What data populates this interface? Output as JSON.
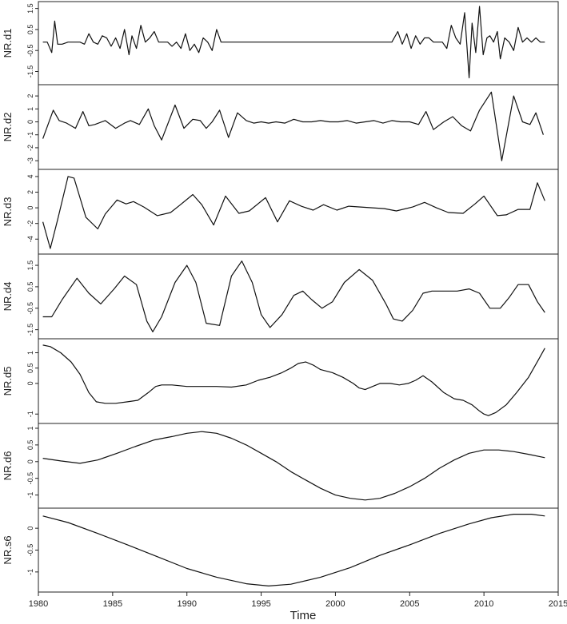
{
  "chart_data": {
    "type": "line",
    "xlabel": "Time",
    "xlim": [
      1980,
      2015
    ],
    "x_ticks": [
      1980,
      1985,
      1990,
      1995,
      2000,
      2005,
      2010,
      2015
    ],
    "grid": false,
    "line_color": "#111111",
    "panels": [
      {
        "ylabel": "NR.d1",
        "ylim": [
          -1.9,
          1.6
        ],
        "y_ticks": [
          -1.5,
          -0.5,
          0.5,
          1.5
        ],
        "x": [
          1980.3,
          1980.6,
          1980.9,
          1981.1,
          1981.3,
          1981.6,
          1982,
          1982.5,
          1982.8,
          1983.1,
          1983.4,
          1983.7,
          1984,
          1984.3,
          1984.6,
          1984.9,
          1985.2,
          1985.5,
          1985.8,
          1986.1,
          1986.3,
          1986.6,
          1986.9,
          1987.2,
          1987.5,
          1987.8,
          1988.1,
          1988.4,
          1988.7,
          1989,
          1989.3,
          1989.6,
          1989.9,
          1990.2,
          1990.5,
          1990.8,
          1991.1,
          1991.4,
          1991.7,
          1992,
          1992.3,
          1992.6,
          1992.9,
          1993.2,
          1993.5,
          1994,
          1995,
          1995.5,
          1996,
          1996.5,
          1997,
          1997.5,
          1998,
          1999,
          2000,
          2001,
          2002,
          2003,
          2003.8,
          2004.2,
          2004.5,
          2004.8,
          2005.1,
          2005.4,
          2005.7,
          2006,
          2006.3,
          2006.6,
          2006.9,
          2007.2,
          2007.5,
          2007.8,
          2008.1,
          2008.4,
          2008.7,
          2009,
          2009.2,
          2009.45,
          2009.7,
          2009.95,
          2010.2,
          2010.4,
          2010.65,
          2010.9,
          2011.1,
          2011.4,
          2011.7,
          2012,
          2012.3,
          2012.6,
          2012.9,
          2013.2,
          2013.5,
          2013.8,
          2014.1
        ],
        "values": [
          -0.1,
          -0.1,
          -0.6,
          0.9,
          -0.2,
          -0.2,
          -0.1,
          -0.1,
          -0.1,
          -0.2,
          0.3,
          -0.1,
          -0.2,
          0.2,
          0.1,
          -0.3,
          0.1,
          -0.4,
          0.5,
          -0.7,
          0.2,
          -0.4,
          0.7,
          -0.1,
          0.1,
          0.4,
          -0.1,
          -0.1,
          -0.1,
          -0.3,
          -0.1,
          -0.4,
          0.3,
          -0.5,
          -0.2,
          -0.6,
          0.1,
          -0.1,
          -0.5,
          0.5,
          -0.1,
          -0.1,
          -0.1,
          -0.1,
          -0.1,
          -0.1,
          -0.1,
          -0.1,
          -0.1,
          -0.1,
          -0.1,
          -0.1,
          -0.1,
          -0.1,
          -0.1,
          -0.1,
          -0.1,
          -0.1,
          -0.1,
          0.4,
          -0.2,
          0.3,
          -0.4,
          0.2,
          -0.2,
          0.1,
          0.1,
          -0.1,
          -0.1,
          -0.1,
          -0.4,
          0.7,
          0.1,
          -0.2,
          1.3,
          -1.8,
          0.8,
          -0.6,
          1.6,
          -0.7,
          0.1,
          0.2,
          -0.1,
          0.4,
          -0.9,
          0.1,
          -0.1,
          -0.5,
          0.6,
          -0.1,
          0.1,
          -0.1,
          0.1,
          -0.1,
          -0.1
        ]
      },
      {
        "ylabel": "NR.d2",
        "ylim": [
          -3.3,
          2.5
        ],
        "y_ticks": [
          -3,
          -2,
          -1,
          0,
          1,
          2
        ],
        "x": [
          1980.3,
          1981,
          1981.4,
          1981.9,
          1982.5,
          1983,
          1983.4,
          1983.8,
          1984.5,
          1985.2,
          1985.8,
          1986.2,
          1986.8,
          1987.4,
          1987.8,
          1988.3,
          1989.2,
          1989.8,
          1990.4,
          1990.9,
          1991.3,
          1991.7,
          1992.2,
          1992.8,
          1993.4,
          1994,
          1994.5,
          1995,
          1995.5,
          1996,
          1996.6,
          1997.2,
          1997.8,
          1998.4,
          1999,
          1999.6,
          2000.2,
          2000.8,
          2001.4,
          2002,
          2002.6,
          2003.2,
          2003.8,
          2004.4,
          2005,
          2005.6,
          2006.1,
          2006.6,
          2007.3,
          2007.9,
          2008.5,
          2009.1,
          2009.7,
          2010.5,
          2011.2,
          2012,
          2012.6,
          2013.1,
          2013.5,
          2014
        ],
        "values": [
          -1.3,
          0.9,
          0.1,
          -0.1,
          -0.5,
          0.8,
          -0.3,
          -0.2,
          0.1,
          -0.5,
          -0.1,
          0.1,
          -0.2,
          1.0,
          -0.3,
          -1.4,
          1.3,
          -0.5,
          0.2,
          0.1,
          -0.5,
          0.0,
          0.9,
          -1.2,
          0.7,
          0.1,
          -0.1,
          0.0,
          -0.1,
          0.0,
          -0.1,
          0.2,
          0.0,
          0.0,
          0.1,
          0.0,
          0.0,
          0.1,
          -0.1,
          0.0,
          0.1,
          -0.1,
          0.1,
          0.0,
          0.0,
          -0.2,
          0.8,
          -0.6,
          0.0,
          0.4,
          -0.3,
          -0.7,
          0.9,
          2.3,
          -3.0,
          2.0,
          0.0,
          -0.2,
          0.7,
          -1.0
        ]
      },
      {
        "ylabel": "NR.d3",
        "ylim": [
          -5.3,
          4.3
        ],
        "y_ticks": [
          -4,
          -2,
          0,
          2,
          4
        ],
        "x": [
          1980.3,
          1980.8,
          1981.3,
          1982.0,
          1982.4,
          1983.2,
          1984.0,
          1984.5,
          1985.3,
          1985.9,
          1986.4,
          1987.1,
          1988.0,
          1988.9,
          1989.5,
          1990.4,
          1991.0,
          1991.8,
          1992.6,
          1993.5,
          1994.2,
          1995.3,
          1996.1,
          1996.9,
          1997.7,
          1998.5,
          1999.2,
          2000.1,
          2000.9,
          2001.7,
          2002.5,
          2003.3,
          2004.1,
          2005.2,
          2006.0,
          2006.8,
          2007.6,
          2008.6,
          2009.4,
          2010.0,
          2010.9,
          2011.5,
          2012.3,
          2013.1,
          2013.6,
          2014.1
        ],
        "values": [
          -1.8,
          -5.2,
          -1.5,
          4.0,
          3.8,
          -1.2,
          -2.7,
          -0.8,
          1.0,
          0.5,
          0.8,
          0.1,
          -1.0,
          -0.6,
          0.3,
          1.7,
          0.4,
          -2.2,
          1.5,
          -0.7,
          -0.4,
          1.3,
          -1.8,
          0.9,
          0.2,
          -0.3,
          0.4,
          -0.3,
          0.2,
          0.1,
          0.0,
          -0.1,
          -0.4,
          0.1,
          0.7,
          0.0,
          -0.6,
          -0.7,
          0.5,
          1.5,
          -1.0,
          -0.9,
          -0.2,
          -0.2,
          3.2,
          0.9
        ]
      },
      {
        "ylabel": "NR.d4",
        "ylim": [
          -1.7,
          1.8
        ],
        "y_ticks": [
          -1.5,
          -0.5,
          0.5,
          1.5
        ],
        "x": [
          1980.3,
          1980.9,
          1981.6,
          1982.6,
          1983.4,
          1984.2,
          1985.1,
          1985.8,
          1986.6,
          1987.3,
          1987.7,
          1988.3,
          1989.2,
          1990.0,
          1990.6,
          1991.3,
          1992.2,
          1993.0,
          1993.7,
          1994.4,
          1995.0,
          1995.6,
          1996.4,
          1997.2,
          1997.8,
          1998.4,
          1999.1,
          1999.8,
          2000.6,
          2001.6,
          2002.5,
          2003.4,
          2003.9,
          2004.5,
          2005.2,
          2005.9,
          2006.5,
          2007.3,
          2008.2,
          2009.0,
          2009.7,
          2010.4,
          2011.1,
          2011.7,
          2012.3,
          2013.0,
          2013.6,
          2014.1
        ],
        "values": [
          -0.9,
          -0.9,
          -0.1,
          0.9,
          0.2,
          -0.3,
          0.4,
          1.0,
          0.6,
          -1.1,
          -1.6,
          -0.9,
          0.7,
          1.5,
          0.7,
          -1.2,
          -1.3,
          1.0,
          1.7,
          0.7,
          -0.8,
          -1.4,
          -0.8,
          0.1,
          0.3,
          -0.1,
          -0.5,
          -0.2,
          0.7,
          1.3,
          0.8,
          -0.3,
          -1.0,
          -1.1,
          -0.6,
          0.2,
          0.3,
          0.3,
          0.3,
          0.4,
          0.2,
          -0.5,
          -0.5,
          0.0,
          0.6,
          0.6,
          -0.2,
          -0.7
        ]
      },
      {
        "ylabel": "NR.d5",
        "ylim": [
          -1.15,
          1.3
        ],
        "y_ticks": [
          -1.0,
          0.0,
          0.5,
          1.0
        ],
        "x": [
          1980.3,
          1980.8,
          1981.5,
          1982.2,
          1982.8,
          1983.4,
          1983.9,
          1984.5,
          1985.2,
          1986.0,
          1986.7,
          1987.4,
          1987.9,
          1988.3,
          1989.0,
          1990.0,
          1991.0,
          1992.0,
          1993.0,
          1994.0,
          1994.8,
          1995.6,
          1996.4,
          1997.0,
          1997.5,
          1998.0,
          1998.5,
          1999.0,
          1999.8,
          2000.5,
          2001.2,
          2001.6,
          2002.0,
          2002.5,
          2003.0,
          2003.7,
          2004.3,
          2004.9,
          2005.4,
          2005.9,
          2006.5,
          2007.3,
          2008.0,
          2008.6,
          2009.2,
          2009.7,
          2010.0,
          2010.3,
          2010.8,
          2011.5,
          2012.2,
          2013.0,
          2013.7,
          2014.1
        ],
        "values": [
          1.25,
          1.2,
          1.0,
          0.7,
          0.3,
          -0.3,
          -0.6,
          -0.65,
          -0.65,
          -0.6,
          -0.55,
          -0.3,
          -0.1,
          -0.05,
          -0.05,
          -0.1,
          -0.1,
          -0.1,
          -0.12,
          -0.05,
          0.1,
          0.2,
          0.35,
          0.5,
          0.65,
          0.7,
          0.6,
          0.45,
          0.35,
          0.2,
          0.0,
          -0.15,
          -0.2,
          -0.1,
          0.0,
          0.0,
          -0.05,
          0.0,
          0.1,
          0.25,
          0.05,
          -0.3,
          -0.5,
          -0.55,
          -0.7,
          -0.9,
          -1.0,
          -1.05,
          -0.95,
          -0.7,
          -0.3,
          0.2,
          0.8,
          1.15
        ]
      },
      {
        "ylabel": "NR.d6",
        "ylim": [
          -1.25,
          1.0
        ],
        "y_ticks": [
          -1.0,
          -0.5,
          0.0,
          0.5,
          1.0
        ],
        "x": [
          1980.3,
          1981.5,
          1982.8,
          1984.0,
          1985.3,
          1986.5,
          1987.8,
          1989.0,
          1990.0,
          1991.0,
          1992.0,
          1993.0,
          1994.0,
          1995.0,
          1996.0,
          1997.0,
          1998.0,
          1999.0,
          2000.0,
          2001.0,
          2002.0,
          2003.0,
          2004.0,
          2005.0,
          2006.0,
          2007.0,
          2008.0,
          2009.0,
          2010.0,
          2011.0,
          2012.0,
          2013.0,
          2014.1
        ],
        "values": [
          0.1,
          0.02,
          -0.05,
          0.05,
          0.25,
          0.45,
          0.65,
          0.75,
          0.85,
          0.9,
          0.85,
          0.7,
          0.5,
          0.25,
          0.0,
          -0.3,
          -0.55,
          -0.8,
          -1.0,
          -1.1,
          -1.15,
          -1.1,
          -0.95,
          -0.75,
          -0.5,
          -0.2,
          0.05,
          0.25,
          0.35,
          0.35,
          0.3,
          0.22,
          0.12
        ]
      },
      {
        "ylabel": "NR.s6",
        "ylim": [
          -1.35,
          0.35
        ],
        "y_ticks": [
          -1.0,
          -0.5,
          0.0
        ],
        "x": [
          1980.3,
          1982.0,
          1984.0,
          1986.0,
          1988.0,
          1990.0,
          1992.0,
          1994.0,
          1995.5,
          1997.0,
          1999.0,
          2001.0,
          2003.0,
          2005.0,
          2007.0,
          2009.0,
          2010.5,
          2012.0,
          2013.2,
          2014.1
        ],
        "values": [
          0.28,
          0.13,
          -0.12,
          -0.38,
          -0.65,
          -0.92,
          -1.12,
          -1.27,
          -1.32,
          -1.28,
          -1.12,
          -0.9,
          -0.62,
          -0.38,
          -0.12,
          0.1,
          0.24,
          0.32,
          0.32,
          0.28
        ]
      }
    ]
  }
}
